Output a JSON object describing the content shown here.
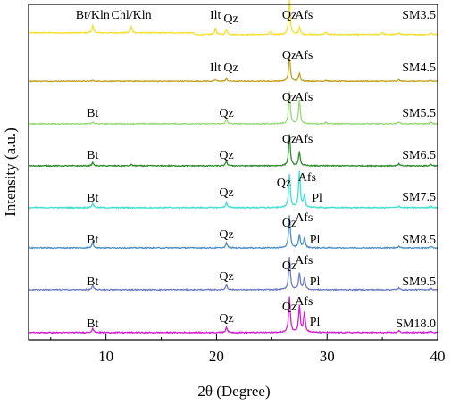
{
  "chart_data": {
    "type": "line",
    "xlabel": "2θ (Degree)",
    "ylabel": "Intensity  (a.u.)",
    "xlim": [
      3,
      40
    ],
    "x_ticks": [
      10,
      20,
      30,
      40
    ],
    "y_ticks_labeled": false,
    "grid": false,
    "legend": "none",
    "series": [
      {
        "name": "SM3.5",
        "color": "#f5e030",
        "baseline": 0.08,
        "bump_cut": 18,
        "peaks": [
          [
            8.8,
            0.2
          ],
          [
            12.3,
            0.17
          ],
          [
            19.9,
            0.18
          ],
          [
            20.9,
            0.14
          ],
          [
            24.9,
            0.08
          ],
          [
            26.6,
            1.0
          ],
          [
            27.5,
            0.22
          ],
          [
            29.9,
            0.07
          ],
          [
            35.0,
            0.07
          ],
          [
            36.5,
            0.06
          ],
          [
            39.4,
            0.05
          ]
        ],
        "annotations": [
          {
            "text": "Bt/Kln",
            "x": 8.8
          },
          {
            "text": "Chl/Kln",
            "x": 12.3
          },
          {
            "text": "Ilt",
            "x": 19.9
          },
          {
            "text": "Qz",
            "x": 21.3
          },
          {
            "text": "Qz",
            "x": 26.6
          },
          {
            "text": "Afs",
            "x": 27.9
          }
        ]
      },
      {
        "name": "SM4.5",
        "color": "#c0a020",
        "baseline": 0.03,
        "bump_cut": 0,
        "peaks": [
          [
            8.8,
            0.03
          ],
          [
            19.9,
            0.06
          ],
          [
            20.9,
            0.1
          ],
          [
            26.6,
            1.0
          ],
          [
            27.5,
            0.32
          ],
          [
            29.9,
            0.04
          ],
          [
            36.5,
            0.06
          ],
          [
            39.4,
            0.04
          ]
        ],
        "annotations": [
          {
            "text": "Ilt",
            "x": 19.9
          },
          {
            "text": "Qz",
            "x": 21.3
          },
          {
            "text": "Qz",
            "x": 26.6
          },
          {
            "text": "Afs",
            "x": 27.9
          }
        ]
      },
      {
        "name": "SM5.5",
        "color": "#98d878",
        "baseline": 0.03,
        "bump_cut": 0,
        "peaks": [
          [
            8.8,
            0.05
          ],
          [
            20.9,
            0.14
          ],
          [
            26.6,
            1.0
          ],
          [
            27.5,
            0.75
          ],
          [
            29.9,
            0.05
          ],
          [
            36.5,
            0.07
          ],
          [
            39.4,
            0.05
          ]
        ],
        "annotations": [
          {
            "text": "Bt",
            "x": 8.8
          },
          {
            "text": "Qz",
            "x": 20.9
          },
          {
            "text": "Qz",
            "x": 26.6
          },
          {
            "text": "Afs",
            "x": 27.9
          }
        ]
      },
      {
        "name": "SM6.5",
        "color": "#2e8b2e",
        "baseline": 0.03,
        "bump_cut": 0,
        "peaks": [
          [
            8.8,
            0.1
          ],
          [
            12.3,
            0.04
          ],
          [
            20.9,
            0.14
          ],
          [
            26.6,
            1.0
          ],
          [
            27.5,
            0.45
          ],
          [
            36.5,
            0.06
          ],
          [
            39.4,
            0.05
          ]
        ],
        "annotations": [
          {
            "text": "Bt",
            "x": 8.8
          },
          {
            "text": "Qz",
            "x": 20.9
          },
          {
            "text": "Qz",
            "x": 26.6
          },
          {
            "text": "Afs",
            "x": 27.9
          }
        ]
      },
      {
        "name": "SM7.5",
        "color": "#40e0d0",
        "baseline": 0.03,
        "bump_cut": 0,
        "peaks": [
          [
            8.8,
            0.12
          ],
          [
            20.9,
            0.14
          ],
          [
            26.6,
            0.95
          ],
          [
            27.5,
            1.0
          ],
          [
            27.95,
            0.35
          ],
          [
            36.5,
            0.05
          ],
          [
            39.4,
            0.04
          ]
        ],
        "annotations": [
          {
            "text": "Bt",
            "x": 8.8
          },
          {
            "text": "Qz",
            "x": 20.9
          },
          {
            "text": "Qz",
            "x": 26.1
          },
          {
            "text": "Afs",
            "x": 28.2
          },
          {
            "text": "Pl",
            "x": 29.1
          }
        ]
      },
      {
        "name": "SM8.5",
        "color": "#4f8fc7",
        "baseline": 0.03,
        "bump_cut": 0,
        "peaks": [
          [
            8.8,
            0.17
          ],
          [
            20.9,
            0.15
          ],
          [
            26.6,
            1.0
          ],
          [
            27.5,
            0.4
          ],
          [
            27.95,
            0.3
          ],
          [
            36.5,
            0.05
          ],
          [
            39.4,
            0.04
          ]
        ],
        "annotations": [
          {
            "text": "Bt",
            "x": 8.8
          },
          {
            "text": "Qz",
            "x": 20.9
          },
          {
            "text": "Qz",
            "x": 26.6
          },
          {
            "text": "Afs",
            "x": 27.9
          },
          {
            "text": "Pl",
            "x": 28.9
          }
        ]
      },
      {
        "name": "SM9.5",
        "color": "#6e7bc4",
        "baseline": 0.03,
        "bump_cut": 0,
        "peaks": [
          [
            8.8,
            0.12
          ],
          [
            20.9,
            0.15
          ],
          [
            26.6,
            1.0
          ],
          [
            27.5,
            0.5
          ],
          [
            27.95,
            0.35
          ],
          [
            36.5,
            0.05
          ],
          [
            39.4,
            0.04
          ]
        ],
        "annotations": [
          {
            "text": "Bt",
            "x": 8.8
          },
          {
            "text": "Qz",
            "x": 20.9
          },
          {
            "text": "Qz",
            "x": 26.6
          },
          {
            "text": "Afs",
            "x": 27.9
          },
          {
            "text": "Pl",
            "x": 28.9
          }
        ]
      },
      {
        "name": "SM18.0",
        "color": "#d020d0",
        "baseline": 0.03,
        "bump_cut": 0,
        "peaks": [
          [
            8.8,
            0.12
          ],
          [
            20.9,
            0.15
          ],
          [
            26.6,
            1.0
          ],
          [
            27.5,
            0.75
          ],
          [
            27.95,
            0.55
          ],
          [
            36.5,
            0.05
          ],
          [
            39.4,
            0.04
          ]
        ],
        "annotations": [
          {
            "text": "Bt",
            "x": 8.8
          },
          {
            "text": "Qz",
            "x": 20.9
          },
          {
            "text": "Qz",
            "x": 26.6
          },
          {
            "text": "Afs",
            "x": 27.9
          },
          {
            "text": "Pl",
            "x": 28.9
          }
        ]
      }
    ]
  }
}
